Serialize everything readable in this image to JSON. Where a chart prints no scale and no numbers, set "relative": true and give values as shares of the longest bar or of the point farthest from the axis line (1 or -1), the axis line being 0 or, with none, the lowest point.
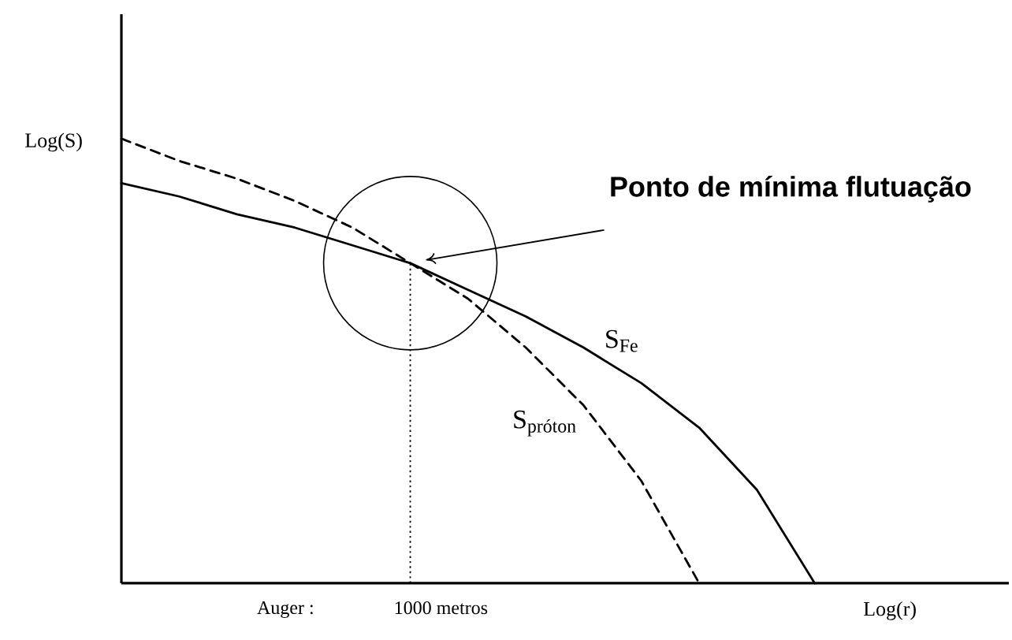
{
  "chart_data": {
    "type": "line",
    "relative": true,
    "ylabel": "Log(S)",
    "xlabel": "Log(r)",
    "categories": [
      null,
      null,
      null,
      null,
      null,
      null,
      null,
      null,
      null,
      null,
      null,
      null,
      null
    ],
    "series": [
      {
        "name": "S$_{Fe}$",
        "color": "#000000",
        "line_style": "solid",
        "values": [
          0.9,
          0.87,
          0.83,
          0.8,
          0.76,
          0.72,
          0.66,
          0.6,
          0.53,
          0.45,
          0.35,
          0.21,
          0
        ]
      },
      {
        "name": "S$_{próton}$",
        "color": "#000000",
        "line_style": "dashed",
        "values": [
          1,
          0.95,
          0.91,
          0.86,
          0.8,
          0.72,
          0.64,
          0.53,
          0.4,
          0.23,
          0,
          null,
          null
        ]
      }
    ],
    "annotations": [
      {
        "text": "Ponto de mínima flutuação"
      },
      "Auger :",
      "1000 metros"
    ]
  }
}
